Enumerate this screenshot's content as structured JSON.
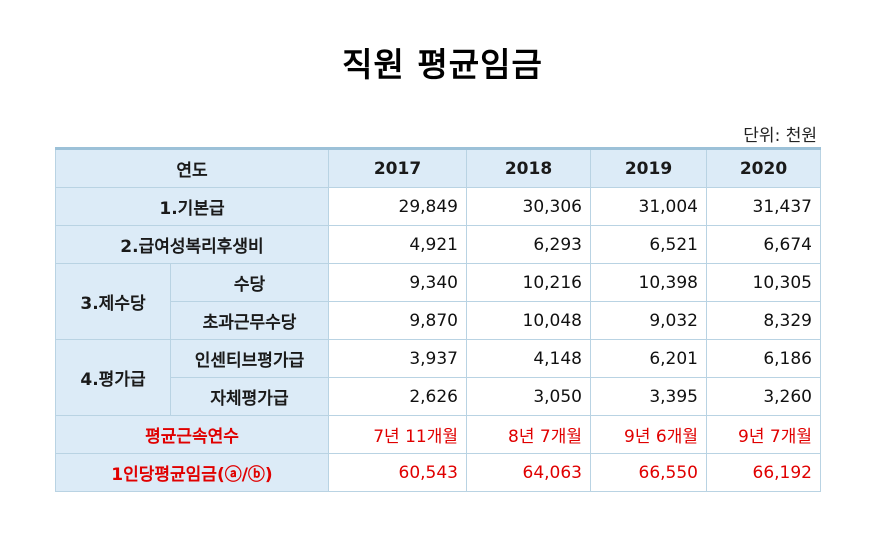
{
  "title": "직원 평균임금",
  "unit": "단위: 천원",
  "header": {
    "label": "연도",
    "years": [
      "2017",
      "2018",
      "2019",
      "2020"
    ]
  },
  "rows": {
    "basic": {
      "label": "1.기본급",
      "values": [
        "29,849",
        "30,306",
        "31,004",
        "31,437"
      ]
    },
    "welfare": {
      "label": "2.급여성복리후생비",
      "values": [
        "4,921",
        "6,293",
        "6,521",
        "6,674"
      ]
    },
    "allowance_group": "3.제수당",
    "allowance": {
      "label": "수당",
      "values": [
        "9,340",
        "10,216",
        "10,398",
        "10,305"
      ]
    },
    "overtime": {
      "label": "초과근무수당",
      "values": [
        "9,870",
        "10,048",
        "9,032",
        "8,329"
      ]
    },
    "eval_group": "4.평가급",
    "incentive": {
      "label": "인센티브평가급",
      "values": [
        "3,937",
        "4,148",
        "6,201",
        "6,186"
      ]
    },
    "self_eval": {
      "label": "자체평가급",
      "values": [
        "2,626",
        "3,050",
        "3,395",
        "3,260"
      ]
    },
    "tenure": {
      "label": "평균근속연수",
      "values": [
        "7년 11개월",
        "8년 7개월",
        "9년 6개월",
        "9년 7개월"
      ]
    },
    "avg_wage": {
      "label": "1인당평균임금(ⓐ/ⓑ)",
      "values": [
        "60,543",
        "64,063",
        "66,550",
        "66,192"
      ]
    }
  },
  "colors": {
    "header_bg": "#dcebf7",
    "border": "#b9d3e3",
    "highlight_text": "#e00000"
  }
}
